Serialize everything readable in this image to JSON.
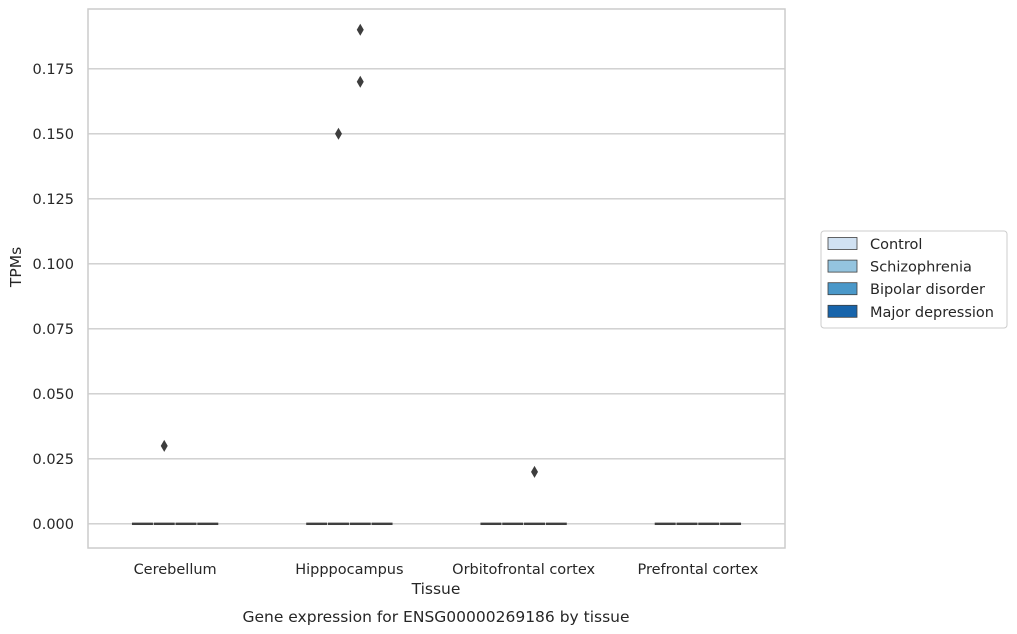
{
  "chart_data": {
    "type": "box",
    "title": "",
    "caption": "Gene expression for ENSG00000269186 by tissue",
    "xlabel": "Tissue",
    "ylabel": "TPMs",
    "ylim": [
      -0.0093,
      0.198
    ],
    "yticks": [
      "0.000",
      "0.025",
      "0.050",
      "0.075",
      "0.100",
      "0.125",
      "0.150",
      "0.175"
    ],
    "categories": [
      "Cerebellum",
      "Hipppocampus",
      "Orbitofrontal cortex",
      "Prefrontal cortex"
    ],
    "grid": "horizontal",
    "legend_position": "right",
    "series": [
      {
        "name": "Control",
        "color": "#d0e1f2",
        "median": [
          0,
          0,
          0,
          0
        ],
        "outliers": [
          [],
          [],
          [],
          []
        ]
      },
      {
        "name": "Schizophrenia",
        "color": "#94c4df",
        "median": [
          0,
          0,
          0,
          0
        ],
        "outliers": [
          [
            0.03
          ],
          [
            0.15
          ],
          [],
          []
        ]
      },
      {
        "name": "Bipolar disorder",
        "color": "#4a98c9",
        "median": [
          0,
          0,
          0,
          0
        ],
        "outliers": [
          [],
          [
            0.17,
            0.19
          ],
          [
            0.02
          ],
          []
        ]
      },
      {
        "name": "Major depression",
        "color": "#1764ab",
        "median": [
          0,
          0,
          0,
          0
        ],
        "outliers": [
          [],
          [],
          [],
          []
        ]
      }
    ]
  }
}
